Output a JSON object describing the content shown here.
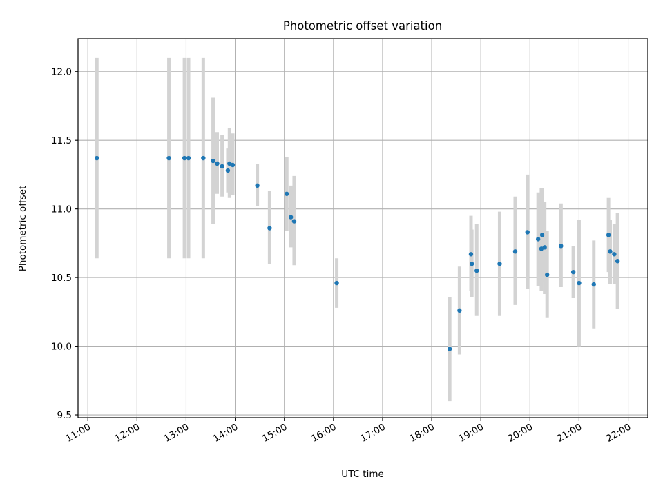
{
  "chart_data": {
    "type": "scatter",
    "title": "Photometric offset variation",
    "xlabel": "UTC time",
    "ylabel": "Photometric offset",
    "x_ticks": [
      "11:00",
      "12:00",
      "13:00",
      "14:00",
      "15:00",
      "16:00",
      "17:00",
      "18:00",
      "19:00",
      "20:00",
      "21:00",
      "22:00"
    ],
    "y_ticks": [
      "9.5",
      "10.0",
      "10.5",
      "11.0",
      "11.5",
      "12.0"
    ],
    "xlim": [
      "10:48",
      "22:24"
    ],
    "ylim": [
      9.48,
      12.24
    ],
    "grid": true,
    "colors": {
      "point": "#1f77b4",
      "errorbar": "#d3d3d3",
      "grid": "#b0b0b0"
    },
    "points": [
      {
        "time": "11:11",
        "y": 11.37,
        "lo": 10.64,
        "hi": 12.1
      },
      {
        "time": "12:39",
        "y": 11.37,
        "lo": 10.64,
        "hi": 12.1
      },
      {
        "time": "12:58",
        "y": 11.37,
        "lo": 10.64,
        "hi": 12.1
      },
      {
        "time": "13:03",
        "y": 11.37,
        "lo": 10.64,
        "hi": 12.1
      },
      {
        "time": "13:21",
        "y": 11.37,
        "lo": 10.64,
        "hi": 12.1
      },
      {
        "time": "13:33",
        "y": 11.35,
        "lo": 10.89,
        "hi": 11.81
      },
      {
        "time": "13:38",
        "y": 11.33,
        "lo": 11.11,
        "hi": 11.56
      },
      {
        "time": "13:44",
        "y": 11.31,
        "lo": 11.09,
        "hi": 11.54
      },
      {
        "time": "13:51",
        "y": 11.28,
        "lo": 11.12,
        "hi": 11.44
      },
      {
        "time": "13:53",
        "y": 11.33,
        "lo": 11.08,
        "hi": 11.59
      },
      {
        "time": "13:57",
        "y": 11.32,
        "lo": 11.1,
        "hi": 11.55
      },
      {
        "time": "14:27",
        "y": 11.17,
        "lo": 11.02,
        "hi": 11.33
      },
      {
        "time": "14:42",
        "y": 10.86,
        "lo": 10.6,
        "hi": 11.13
      },
      {
        "time": "15:03",
        "y": 11.11,
        "lo": 10.84,
        "hi": 11.38
      },
      {
        "time": "15:08",
        "y": 10.94,
        "lo": 10.72,
        "hi": 11.17
      },
      {
        "time": "15:12",
        "y": 10.91,
        "lo": 10.59,
        "hi": 11.24
      },
      {
        "time": "16:04",
        "y": 10.46,
        "lo": 10.28,
        "hi": 10.64
      },
      {
        "time": "18:22",
        "y": 9.98,
        "lo": 9.6,
        "hi": 10.36
      },
      {
        "time": "18:34",
        "y": 10.26,
        "lo": 9.94,
        "hi": 10.58
      },
      {
        "time": "18:48",
        "y": 10.67,
        "lo": 10.4,
        "hi": 10.95
      },
      {
        "time": "18:49",
        "y": 10.6,
        "lo": 10.36,
        "hi": 10.85
      },
      {
        "time": "18:55",
        "y": 10.55,
        "lo": 10.22,
        "hi": 10.89
      },
      {
        "time": "19:23",
        "y": 10.6,
        "lo": 10.22,
        "hi": 10.98
      },
      {
        "time": "19:42",
        "y": 10.69,
        "lo": 10.3,
        "hi": 11.09
      },
      {
        "time": "19:57",
        "y": 10.83,
        "lo": 10.42,
        "hi": 11.25
      },
      {
        "time": "20:10",
        "y": 10.78,
        "lo": 10.44,
        "hi": 11.12
      },
      {
        "time": "20:14",
        "y": 10.71,
        "lo": 10.4,
        "hi": 11.15
      },
      {
        "time": "20:15",
        "y": 10.81,
        "lo": 10.47,
        "hi": 11.15
      },
      {
        "time": "20:18",
        "y": 10.72,
        "lo": 10.38,
        "hi": 11.05
      },
      {
        "time": "20:21",
        "y": 10.52,
        "lo": 10.21,
        "hi": 10.84
      },
      {
        "time": "20:38",
        "y": 10.73,
        "lo": 10.43,
        "hi": 11.04
      },
      {
        "time": "20:53",
        "y": 10.54,
        "lo": 10.35,
        "hi": 10.73
      },
      {
        "time": "21:00",
        "y": 10.46,
        "lo": 10.0,
        "hi": 10.92
      },
      {
        "time": "21:18",
        "y": 10.45,
        "lo": 10.13,
        "hi": 10.77
      },
      {
        "time": "21:36",
        "y": 10.81,
        "lo": 10.54,
        "hi": 11.08
      },
      {
        "time": "21:38",
        "y": 10.69,
        "lo": 10.45,
        "hi": 10.92
      },
      {
        "time": "21:43",
        "y": 10.67,
        "lo": 10.45,
        "hi": 10.89
      },
      {
        "time": "21:47",
        "y": 10.62,
        "lo": 10.27,
        "hi": 10.97
      }
    ]
  }
}
